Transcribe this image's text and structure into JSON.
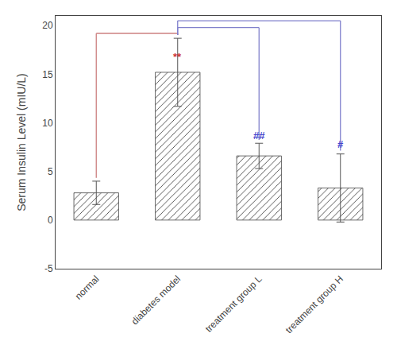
{
  "chart_data": {
    "type": "bar",
    "categories": [
      "normal",
      "diabetes model",
      "treatment group L",
      "treatment group H"
    ],
    "values": [
      2.8,
      15.2,
      6.6,
      3.3
    ],
    "errors": [
      1.2,
      3.5,
      1.3,
      3.5
    ],
    "color": "#444444",
    "ylabel": "Serum Insulin Level (mIU/L)",
    "ylim": [
      -5,
      21
    ],
    "yticks": [
      -5,
      0,
      5,
      10,
      15,
      20
    ],
    "grid": false,
    "annotations": [
      {
        "text": "**",
        "x": "diabetes model",
        "y": 16.0,
        "color": "#cc3333"
      },
      {
        "text": "##",
        "x": "treatment group L",
        "y": 7.9,
        "color": "#4444cc"
      },
      {
        "text": "#",
        "x": "treatment group H",
        "y": 7.0,
        "color": "#4444cc"
      }
    ],
    "brackets": [
      {
        "from": "normal",
        "to": "diabetes model",
        "y": 19.2,
        "color": "#cc8080"
      },
      {
        "from": "diabetes model",
        "to": "treatment group L",
        "y": 19.8,
        "color": "#8080cc"
      },
      {
        "from": "diabetes model",
        "to": "treatment group H",
        "y": 20.5,
        "color": "#8080cc"
      }
    ]
  }
}
